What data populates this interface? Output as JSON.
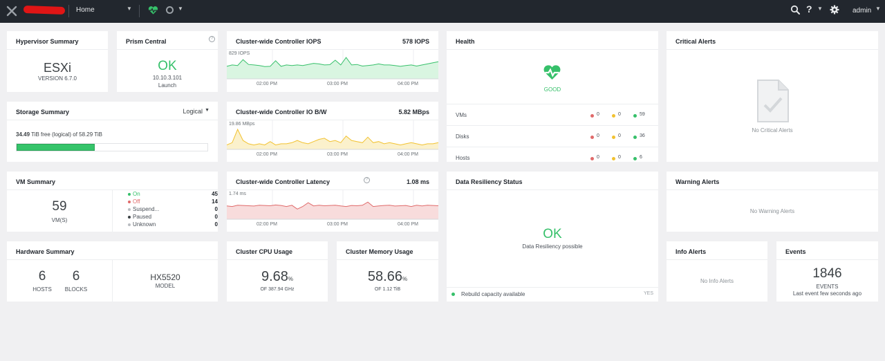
{
  "topbar": {
    "home_label": "Home",
    "user_label": "admin"
  },
  "hypervisor": {
    "title": "Hypervisor Summary",
    "name": "ESXi",
    "version": "VERSION 6.7.0"
  },
  "prism": {
    "title": "Prism Central",
    "status": "OK",
    "ip": "10.10.3.101",
    "link": "Launch"
  },
  "iops": {
    "title": "Cluster-wide Controller IOPS",
    "value": "578 IOPS",
    "ymax_label": "829 IOPS",
    "ticks": [
      "02:00 PM",
      "03:00 PM",
      "04:00 PM"
    ],
    "series": [
      470,
      520,
      500,
      720,
      540,
      520,
      500,
      460,
      470,
      680,
      470,
      520,
      500,
      520,
      500,
      540,
      580,
      560,
      520,
      530,
      700,
      520,
      800,
      520,
      540,
      480,
      500,
      520,
      560,
      520,
      520,
      500,
      470,
      500,
      520,
      480,
      520,
      560,
      600,
      640
    ],
    "ymax": 829,
    "color": "#36c06a",
    "fill": "#d9f5e1"
  },
  "bw": {
    "title": "Cluster-wide Controller IO B/W",
    "value": "5.82 MBps",
    "ymax_label": "19.86 MBps",
    "ticks": [
      "02:00 PM",
      "03:00 PM",
      "04:00 PM"
    ],
    "series": [
      4,
      6,
      18,
      8,
      5,
      4,
      5,
      4,
      7,
      4,
      5,
      5,
      6,
      8,
      6,
      5,
      7,
      9,
      10,
      7,
      8,
      6,
      12,
      8,
      7,
      6,
      11,
      6,
      7,
      5,
      6,
      5,
      4,
      5,
      6,
      5,
      4,
      5,
      5,
      6
    ],
    "ymax": 19.86,
    "color": "#f2c230",
    "fill": "#fbf1cc"
  },
  "latency": {
    "title": "Cluster-wide Controller Latency",
    "value": "1.08 ms",
    "ymax_label": "1.74 ms",
    "ticks": [
      "02:00 PM",
      "03:00 PM",
      "04:00 PM"
    ],
    "series": [
      1.05,
      1.0,
      1.1,
      1.08,
      1.06,
      1.04,
      1.1,
      1.08,
      1.06,
      1.12,
      1.08,
      1.0,
      1.1,
      0.8,
      1.0,
      1.3,
      1.05,
      1.1,
      1.06,
      1.08,
      1.1,
      1.05,
      1.0,
      1.08,
      1.06,
      1.1,
      1.35,
      1.0,
      1.05,
      1.08,
      1.1,
      1.04,
      1.06,
      1.08,
      1.0,
      1.1,
      1.05,
      1.1,
      1.08,
      1.06
    ],
    "ymax": 1.74,
    "color": "#e06a6a",
    "fill": "#f8dcdc"
  },
  "health": {
    "title": "Health",
    "status": "GOOD",
    "rows": [
      {
        "label": "VMs",
        "red": "0",
        "yellow": "0",
        "green": "59"
      },
      {
        "label": "Disks",
        "red": "0",
        "yellow": "0",
        "green": "36"
      },
      {
        "label": "Hosts",
        "red": "0",
        "yellow": "0",
        "green": "6"
      }
    ]
  },
  "critical": {
    "title": "Critical Alerts",
    "empty": "No Critical Alerts"
  },
  "storage": {
    "title": "Storage Summary",
    "mode": "Logical",
    "free_value": "34.49",
    "free_text": "TiB free (logical) of 58.29 TiB",
    "used_fraction": 0.41
  },
  "vm": {
    "title": "VM Summary",
    "count": "59",
    "count_label": "VM(S)",
    "states": [
      {
        "label": "On",
        "value": "45",
        "color": "#36c06a"
      },
      {
        "label": "Off",
        "value": "14",
        "color": "#e06a6a"
      },
      {
        "label": "Suspend...",
        "value": "0",
        "color": "#b9bdc1"
      },
      {
        "label": "Paused",
        "value": "0",
        "color": "#3c4145"
      },
      {
        "label": "Unknown",
        "value": "0",
        "color": "#b9bdc1"
      }
    ]
  },
  "resiliency": {
    "title": "Data Resiliency Status",
    "status": "OK",
    "sub": "Data Resiliency possible",
    "footer": "Rebuild capacity available",
    "footer_value": "YES"
  },
  "warning": {
    "title": "Warning Alerts",
    "empty": "No Warning Alerts"
  },
  "hardware": {
    "title": "Hardware Summary",
    "hosts": "6",
    "hosts_label": "HOSTS",
    "blocks": "6",
    "blocks_label": "BLOCKS",
    "model": "HX5520",
    "model_label": "MODEL"
  },
  "cpu": {
    "title": "Cluster CPU Usage",
    "value": "9.68",
    "unit": "%",
    "sub": "OF 387.94 GHz"
  },
  "memory": {
    "title": "Cluster Memory Usage",
    "value": "58.66",
    "unit": "%",
    "sub": "OF 1.12 TiB"
  },
  "info": {
    "title": "Info Alerts",
    "empty": "No Info Alerts"
  },
  "events": {
    "title": "Events",
    "count": "1846",
    "label": "EVENTS",
    "sub": "Last event few seconds ago"
  },
  "colors": {
    "green": "#36c06a",
    "red": "#e06a6a",
    "yellow": "#f2c230",
    "topbar": "#22272e"
  }
}
